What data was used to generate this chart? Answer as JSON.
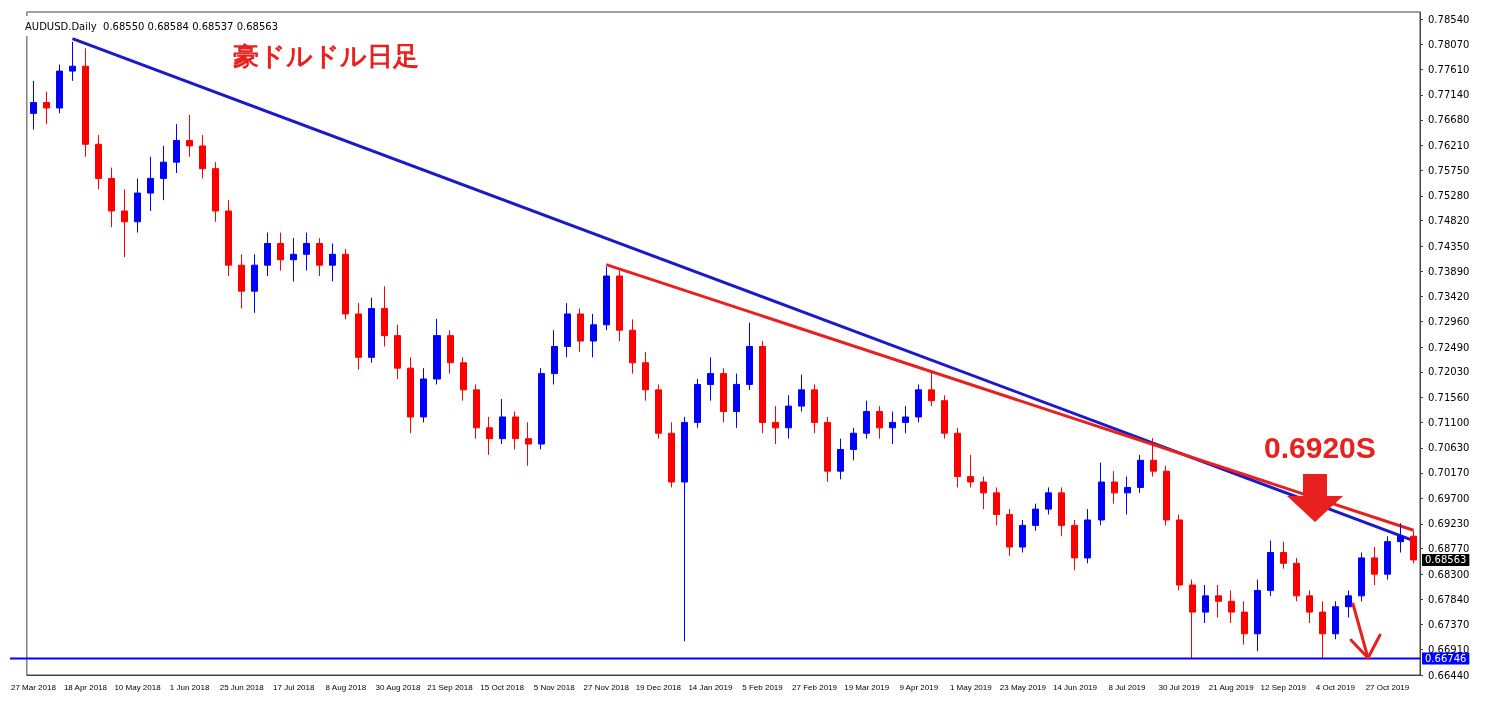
{
  "chart_data": {
    "type": "candlestick",
    "title": "豪ドルドル日足",
    "subtitle": "AUDUSD.Daily  0.68550 0.68584 0.68537 0.68563",
    "annotations": [
      "0.6920S",
      "0.68563"
    ],
    "categories": [
      "27 Mar 2018",
      null,
      null,
      null,
      "18 Apr 2018",
      null,
      null,
      null,
      "10 May 2018",
      null,
      null,
      null,
      "1 Jun 2018",
      null,
      null,
      null,
      "25 Jun 2018",
      null,
      null,
      null,
      "17 Jul 2018",
      null,
      null,
      null,
      "8 Aug 2018",
      null,
      null,
      null,
      "30 Aug 2018",
      null,
      null,
      null,
      "21 Sep 2018",
      null,
      null,
      null,
      "15 Oct 2018",
      null,
      null,
      null,
      "5 Nov 2018",
      null,
      null,
      null,
      "27 Nov 2018",
      null,
      null,
      null,
      "19 Dec 2018",
      null,
      null,
      null,
      "14 Jan 2019",
      null,
      null,
      null,
      "5 Feb 2019",
      null,
      null,
      null,
      "27 Feb 2019",
      null,
      null,
      null,
      "19 Mar 2019",
      null,
      null,
      null,
      "9 Apr 2019",
      null,
      null,
      null,
      "1 May 2019",
      null,
      null,
      null,
      "23 May 2019",
      null,
      null,
      null,
      "14 Jun 2019",
      null,
      null,
      null,
      "8 Jul 2019",
      null,
      null,
      null,
      "30 Jul 2019",
      null,
      null,
      null,
      "21 Aug 2019",
      null,
      null,
      null,
      "12 Sep 2019",
      null,
      null,
      null,
      "4 Oct 2019",
      null,
      null,
      null,
      "27 Oct 2019",
      null,
      null
    ],
    "ohlc": [
      [
        0.768,
        0.774,
        0.765,
        0.77
      ],
      [
        0.77,
        0.772,
        0.766,
        0.769
      ],
      [
        0.769,
        0.777,
        0.768,
        0.7758
      ],
      [
        0.7758,
        0.7812,
        0.774,
        0.7767
      ],
      [
        0.7767,
        0.78,
        0.76,
        0.7623
      ],
      [
        0.7623,
        0.764,
        0.754,
        0.756
      ],
      [
        0.756,
        0.758,
        0.747,
        0.75
      ],
      [
        0.75,
        0.754,
        0.7415,
        0.748
      ],
      [
        0.748,
        0.756,
        0.746,
        0.7533
      ],
      [
        0.7533,
        0.76,
        0.75,
        0.756
      ],
      [
        0.756,
        0.762,
        0.752,
        0.759
      ],
      [
        0.759,
        0.766,
        0.757,
        0.763
      ],
      [
        0.763,
        0.7677,
        0.76,
        0.762
      ],
      [
        0.762,
        0.764,
        0.756,
        0.7578
      ],
      [
        0.7578,
        0.759,
        0.748,
        0.75
      ],
      [
        0.75,
        0.752,
        0.738,
        0.74
      ],
      [
        0.74,
        0.742,
        0.732,
        0.7352
      ],
      [
        0.7352,
        0.742,
        0.7312,
        0.74
      ],
      [
        0.74,
        0.746,
        0.738,
        0.744
      ],
      [
        0.744,
        0.746,
        0.739,
        0.741
      ],
      [
        0.741,
        0.745,
        0.737,
        0.742
      ],
      [
        0.742,
        0.746,
        0.739,
        0.744
      ],
      [
        0.744,
        0.745,
        0.738,
        0.74
      ],
      [
        0.74,
        0.744,
        0.737,
        0.742
      ],
      [
        0.742,
        0.743,
        0.73,
        0.731
      ],
      [
        0.731,
        0.733,
        0.7207,
        0.723
      ],
      [
        0.723,
        0.734,
        0.722,
        0.732
      ],
      [
        0.732,
        0.7361,
        0.725,
        0.727
      ],
      [
        0.727,
        0.729,
        0.719,
        0.721
      ],
      [
        0.721,
        0.723,
        0.709,
        0.712
      ],
      [
        0.712,
        0.721,
        0.711,
        0.719
      ],
      [
        0.719,
        0.7301,
        0.718,
        0.727
      ],
      [
        0.727,
        0.728,
        0.72,
        0.722
      ],
      [
        0.722,
        0.723,
        0.715,
        0.717
      ],
      [
        0.717,
        0.718,
        0.708,
        0.71
      ],
      [
        0.71,
        0.712,
        0.705,
        0.708
      ],
      [
        0.708,
        0.7153,
        0.707,
        0.712
      ],
      [
        0.712,
        0.713,
        0.706,
        0.708
      ],
      [
        0.708,
        0.711,
        0.703,
        0.707
      ],
      [
        0.707,
        0.721,
        0.706,
        0.72
      ],
      [
        0.72,
        0.728,
        0.718,
        0.725
      ],
      [
        0.725,
        0.733,
        0.723,
        0.731
      ],
      [
        0.731,
        0.732,
        0.724,
        0.726
      ],
      [
        0.726,
        0.731,
        0.723,
        0.729
      ],
      [
        0.729,
        0.7397,
        0.728,
        0.738
      ],
      [
        0.738,
        0.739,
        0.726,
        0.728
      ],
      [
        0.728,
        0.73,
        0.72,
        0.722
      ],
      [
        0.722,
        0.724,
        0.715,
        0.717
      ],
      [
        0.717,
        0.718,
        0.708,
        0.709
      ],
      [
        0.709,
        0.711,
        0.699,
        0.7
      ],
      [
        0.7,
        0.712,
        0.6706,
        0.711
      ],
      [
        0.711,
        0.719,
        0.71,
        0.718
      ],
      [
        0.718,
        0.723,
        0.715,
        0.72
      ],
      [
        0.72,
        0.721,
        0.711,
        0.713
      ],
      [
        0.713,
        0.72,
        0.71,
        0.718
      ],
      [
        0.718,
        0.7294,
        0.717,
        0.725
      ],
      [
        0.725,
        0.726,
        0.709,
        0.711
      ],
      [
        0.711,
        0.714,
        0.707,
        0.71
      ],
      [
        0.71,
        0.716,
        0.708,
        0.714
      ],
      [
        0.714,
        0.7198,
        0.713,
        0.717
      ],
      [
        0.717,
        0.718,
        0.709,
        0.711
      ],
      [
        0.711,
        0.712,
        0.7,
        0.702
      ],
      [
        0.702,
        0.708,
        0.7005,
        0.706
      ],
      [
        0.706,
        0.71,
        0.704,
        0.709
      ],
      [
        0.709,
        0.715,
        0.708,
        0.713
      ],
      [
        0.713,
        0.714,
        0.708,
        0.71
      ],
      [
        0.71,
        0.713,
        0.707,
        0.711
      ],
      [
        0.711,
        0.714,
        0.709,
        0.712
      ],
      [
        0.712,
        0.718,
        0.711,
        0.717
      ],
      [
        0.717,
        0.7204,
        0.714,
        0.715
      ],
      [
        0.715,
        0.716,
        0.708,
        0.709
      ],
      [
        0.709,
        0.71,
        0.699,
        0.701
      ],
      [
        0.701,
        0.705,
        0.699,
        0.7
      ],
      [
        0.7,
        0.701,
        0.695,
        0.698
      ],
      [
        0.698,
        0.699,
        0.692,
        0.694
      ],
      [
        0.694,
        0.695,
        0.6864,
        0.688
      ],
      [
        0.688,
        0.693,
        0.687,
        0.692
      ],
      [
        0.692,
        0.696,
        0.691,
        0.695
      ],
      [
        0.695,
        0.699,
        0.694,
        0.698
      ],
      [
        0.698,
        0.699,
        0.69,
        0.692
      ],
      [
        0.692,
        0.693,
        0.6837,
        0.686
      ],
      [
        0.686,
        0.695,
        0.685,
        0.693
      ],
      [
        0.693,
        0.7036,
        0.692,
        0.7
      ],
      [
        0.7,
        0.702,
        0.696,
        0.698
      ],
      [
        0.698,
        0.701,
        0.694,
        0.699
      ],
      [
        0.699,
        0.705,
        0.698,
        0.704
      ],
      [
        0.704,
        0.7081,
        0.701,
        0.702
      ],
      [
        0.702,
        0.703,
        0.692,
        0.693
      ],
      [
        0.693,
        0.694,
        0.68,
        0.681
      ],
      [
        0.681,
        0.682,
        0.6675,
        0.676
      ],
      [
        0.676,
        0.681,
        0.674,
        0.679
      ],
      [
        0.679,
        0.681,
        0.675,
        0.678
      ],
      [
        0.678,
        0.68,
        0.674,
        0.676
      ],
      [
        0.676,
        0.678,
        0.67,
        0.672
      ],
      [
        0.672,
        0.682,
        0.6688,
        0.68
      ],
      [
        0.68,
        0.6892,
        0.679,
        0.687
      ],
      [
        0.687,
        0.689,
        0.684,
        0.685
      ],
      [
        0.685,
        0.686,
        0.678,
        0.679
      ],
      [
        0.679,
        0.68,
        0.674,
        0.676
      ],
      [
        0.676,
        0.678,
        0.6675,
        0.672
      ],
      [
        0.672,
        0.678,
        0.671,
        0.677
      ],
      [
        0.677,
        0.68,
        0.675,
        0.679
      ],
      [
        0.679,
        0.687,
        0.678,
        0.686
      ],
      [
        0.686,
        0.688,
        0.681,
        0.683
      ],
      [
        0.683,
        0.69,
        0.682,
        0.689
      ],
      [
        0.689,
        0.6924,
        0.687,
        0.69
      ],
      [
        0.69,
        0.691,
        0.685,
        0.68563
      ]
    ],
    "colors": [
      "#0000ff",
      "#ff0000",
      "#0000ff",
      "#0000ff",
      "#ff0000",
      "#ff0000",
      "#ff0000",
      "#ff0000",
      "#0000ff",
      "#0000ff",
      "#0000ff",
      "#0000ff",
      "#ff0000",
      "#ff0000",
      "#ff0000",
      "#ff0000",
      "#ff0000",
      "#0000ff",
      "#0000ff",
      "#ff0000",
      "#0000ff",
      "#0000ff",
      "#ff0000",
      "#0000ff",
      "#ff0000",
      "#ff0000",
      "#0000ff",
      "#ff0000",
      "#ff0000",
      "#ff0000",
      "#0000ff",
      "#0000ff",
      "#ff0000",
      "#ff0000",
      "#ff0000",
      "#ff0000",
      "#0000ff",
      "#ff0000",
      "#ff0000",
      "#0000ff",
      "#0000ff",
      "#0000ff",
      "#ff0000",
      "#0000ff",
      "#0000ff",
      "#ff0000",
      "#ff0000",
      "#ff0000",
      "#ff0000",
      "#ff0000",
      "#0000ff",
      "#0000ff",
      "#0000ff",
      "#ff0000",
      "#0000ff",
      "#0000ff",
      "#ff0000",
      "#ff0000",
      "#0000ff",
      "#0000ff",
      "#ff0000",
      "#ff0000",
      "#0000ff",
      "#0000ff",
      "#0000ff",
      "#ff0000",
      "#0000ff",
      "#0000ff",
      "#0000ff",
      "#ff0000",
      "#ff0000",
      "#ff0000",
      "#ff0000",
      "#ff0000",
      "#ff0000",
      "#ff0000",
      "#0000ff",
      "#0000ff",
      "#0000ff",
      "#ff0000",
      "#ff0000",
      "#0000ff",
      "#0000ff",
      "#ff0000",
      "#0000ff",
      "#0000ff",
      "#ff0000",
      "#ff0000",
      "#ff0000",
      "#ff0000",
      "#0000ff",
      "#ff0000",
      "#ff0000",
      "#ff0000",
      "#0000ff",
      "#0000ff",
      "#ff0000",
      "#ff0000",
      "#ff0000",
      "#ff0000",
      "#0000ff",
      "#0000ff",
      "#0000ff",
      "#ff0000",
      "#0000ff",
      "#0000ff",
      "#ff0000"
    ],
    "series": [
      {
        "type": "line",
        "color": "#1a1ac8",
        "values": [
          null,
          null,
          null,
          0.7818,
          null,
          null,
          null,
          null,
          null,
          null,
          null,
          null,
          null,
          null,
          null,
          null,
          null,
          null,
          null,
          null,
          null,
          null,
          null,
          null,
          null,
          null,
          null,
          null,
          null,
          null,
          null,
          null,
          null,
          null,
          null,
          null,
          null,
          null,
          null,
          null,
          null,
          null,
          null,
          null,
          null,
          null,
          null,
          null,
          null,
          null,
          null,
          null,
          null,
          null,
          null,
          null,
          null,
          null,
          null,
          null,
          null,
          null,
          null,
          null,
          null,
          null,
          null,
          null,
          null,
          null,
          null,
          null,
          null,
          null,
          null,
          null,
          null,
          null,
          null,
          null,
          null,
          null,
          null,
          null,
          null,
          null,
          null,
          null,
          null,
          null,
          null,
          null,
          null,
          null,
          null,
          null,
          null,
          null,
          null,
          null,
          null,
          null,
          null,
          null,
          null,
          null,
          0.6892
        ]
      },
      {
        "type": "line",
        "color": "#e8201e",
        "values": [
          null,
          null,
          null,
          null,
          null,
          null,
          null,
          null,
          null,
          null,
          null,
          null,
          null,
          null,
          null,
          null,
          null,
          null,
          null,
          null,
          null,
          null,
          null,
          null,
          null,
          null,
          null,
          null,
          null,
          null,
          null,
          null,
          null,
          null,
          null,
          null,
          null,
          null,
          null,
          null,
          null,
          null,
          null,
          null,
          0.7401,
          null,
          null,
          null,
          null,
          null,
          null,
          null,
          null,
          null,
          null,
          null,
          null,
          null,
          null,
          null,
          null,
          null,
          null,
          null,
          null,
          null,
          null,
          null,
          null,
          null,
          null,
          null,
          null,
          null,
          null,
          null,
          null,
          null,
          null,
          null,
          null,
          null,
          null,
          null,
          null,
          null,
          null,
          null,
          null,
          null,
          null,
          null,
          null,
          null,
          null,
          null,
          null,
          null,
          null,
          null,
          null,
          null,
          null,
          null,
          null,
          null,
          0.6911
        ]
      }
    ],
    "ref_lines": [
      {
        "axis": "y",
        "value": 0.66746,
        "label": "0.66746",
        "color": "#0000ff"
      }
    ],
    "ylim": [
      0.6644,
      0.7867
    ],
    "yticks": [
      {
        "value": 0.7854,
        "label": "0.78540"
      },
      {
        "value": 0.7807,
        "label": "0.78070"
      },
      {
        "value": 0.7761,
        "label": "0.77610"
      },
      {
        "value": 0.7714,
        "label": "0.77140"
      },
      {
        "value": 0.7668,
        "label": "0.76680"
      },
      {
        "value": 0.7621,
        "label": "0.76210"
      },
      {
        "value": 0.7575,
        "label": "0.75750"
      },
      {
        "value": 0.7528,
        "label": "0.75280"
      },
      {
        "value": 0.7482,
        "label": "0.74820"
      },
      {
        "value": 0.7435,
        "label": "0.74350"
      },
      {
        "value": 0.7389,
        "label": "0.73890"
      },
      {
        "value": 0.7342,
        "label": "0.73420"
      },
      {
        "value": 0.7296,
        "label": "0.72960"
      },
      {
        "value": 0.7249,
        "label": "0.72490"
      },
      {
        "value": 0.7203,
        "label": "0.72030"
      },
      {
        "value": 0.7156,
        "label": "0.71560"
      },
      {
        "value": 0.711,
        "label": "0.71100"
      },
      {
        "value": 0.7063,
        "label": "0.70630"
      },
      {
        "value": 0.7017,
        "label": "0.70170"
      },
      {
        "value": 0.697,
        "label": "0.69700"
      },
      {
        "value": 0.6923,
        "label": "0.69230"
      },
      {
        "value": 0.6877,
        "label": "0.68770"
      },
      {
        "value": 0.683,
        "label": "0.68300"
      },
      {
        "value": 0.6784,
        "label": "0.67840"
      },
      {
        "value": 0.6737,
        "label": "0.67370"
      },
      {
        "value": 0.6691,
        "label": "0.66910"
      },
      {
        "value": 0.6644,
        "label": "0.66440"
      }
    ]
  }
}
